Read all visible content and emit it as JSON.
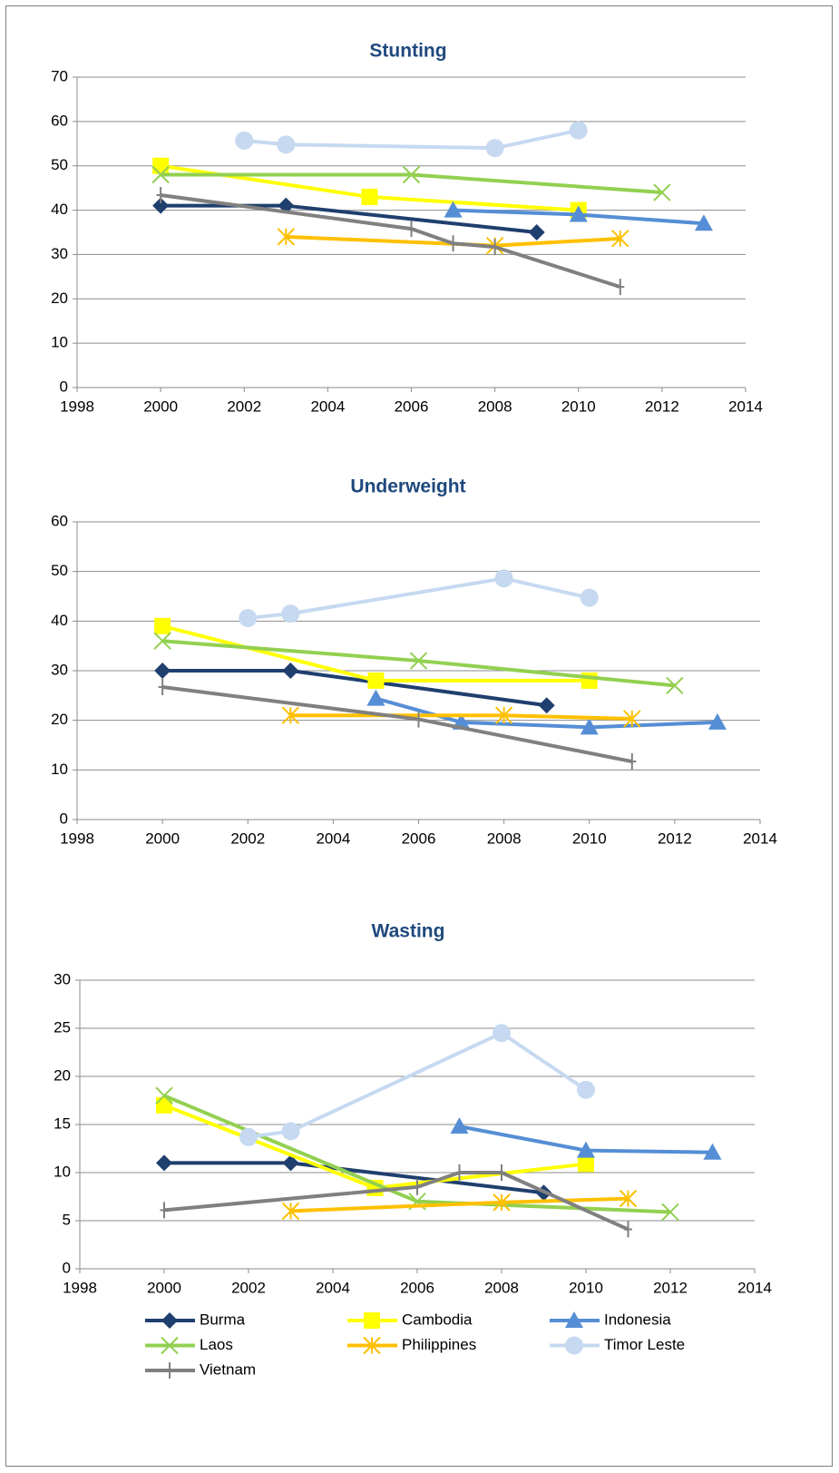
{
  "chart_data": [
    {
      "type": "line",
      "title": "Stunting",
      "xlim": [
        1998,
        2014
      ],
      "xticks": [
        1998,
        2000,
        2002,
        2004,
        2006,
        2008,
        2010,
        2012,
        2014
      ],
      "ylim": [
        0,
        70
      ],
      "yticks": [
        0,
        10,
        20,
        30,
        40,
        50,
        60,
        70
      ],
      "grid": true,
      "series": [
        {
          "color": "#1f3f6e",
          "marker": "diamond",
          "x": [
            2000,
            2003,
            2009
          ],
          "values": [
            41,
            41,
            35
          ]
        },
        {
          "color": "#ffff00",
          "marker": "square",
          "x": [
            2000,
            2005,
            2010
          ],
          "values": [
            50,
            43,
            40
          ]
        },
        {
          "color": "#558ed5",
          "marker": "triangle",
          "x": [
            2007,
            2010,
            2013
          ],
          "values": [
            40,
            39,
            37
          ]
        },
        {
          "color": "#92d050",
          "marker": "x",
          "x": [
            2000,
            2006,
            2012
          ],
          "values": [
            48,
            48,
            44
          ]
        },
        {
          "color": "#ffc000",
          "marker": "star",
          "x": [
            2003,
            2008,
            2011
          ],
          "values": [
            34,
            32,
            33.6
          ]
        },
        {
          "color": "#c6d9f1",
          "marker": "circle",
          "x": [
            2002,
            2003,
            2008,
            2010
          ],
          "values": [
            55.7,
            54.8,
            54,
            58
          ]
        },
        {
          "color": "#808080",
          "marker": "plus",
          "x": [
            2000,
            2006,
            2007,
            2008,
            2011
          ],
          "values": [
            43.4,
            35.8,
            32.5,
            31.7,
            22.7
          ]
        }
      ]
    },
    {
      "type": "line",
      "title": "Underweight",
      "xlim": [
        1998,
        2014
      ],
      "xticks": [
        1998,
        2000,
        2002,
        2004,
        2006,
        2008,
        2010,
        2012,
        2014
      ],
      "ylim": [
        0,
        60
      ],
      "yticks": [
        0,
        10,
        20,
        30,
        40,
        50,
        60
      ],
      "grid": true,
      "series": [
        {
          "color": "#1f3f6e",
          "marker": "diamond",
          "x": [
            2000,
            2003,
            2009
          ],
          "values": [
            30,
            30,
            23
          ]
        },
        {
          "color": "#ffff00",
          "marker": "square",
          "x": [
            2000,
            2005,
            2010
          ],
          "values": [
            39,
            28,
            28
          ]
        },
        {
          "color": "#558ed5",
          "marker": "triangle",
          "x": [
            2005,
            2007,
            2010,
            2013
          ],
          "values": [
            24.4,
            19.6,
            18.6,
            19.6
          ]
        },
        {
          "color": "#92d050",
          "marker": "x",
          "x": [
            2000,
            2006,
            2012
          ],
          "values": [
            36,
            32,
            27
          ]
        },
        {
          "color": "#ffc000",
          "marker": "star",
          "x": [
            2003,
            2008,
            2011
          ],
          "values": [
            21,
            21,
            20.3
          ]
        },
        {
          "color": "#c6d9f1",
          "marker": "circle",
          "x": [
            2002,
            2003,
            2008,
            2010
          ],
          "values": [
            40.6,
            41.5,
            48.6,
            44.7
          ]
        },
        {
          "color": "#808080",
          "marker": "plus",
          "x": [
            2000,
            2006,
            2011
          ],
          "values": [
            26.7,
            20.2,
            11.7
          ]
        }
      ]
    },
    {
      "type": "line",
      "title": "Wasting",
      "xlim": [
        1998,
        2014
      ],
      "xticks": [
        1998,
        2000,
        2002,
        2004,
        2006,
        2008,
        2010,
        2012,
        2014
      ],
      "ylim": [
        0,
        30
      ],
      "yticks": [
        0,
        5,
        10,
        15,
        20,
        25,
        30
      ],
      "grid": true,
      "legend": "bottom",
      "series": [
        {
          "name": "Burma",
          "color": "#1f3f6e",
          "marker": "diamond",
          "x": [
            2000,
            2003,
            2009
          ],
          "values": [
            11,
            11,
            7.9
          ]
        },
        {
          "name": "Cambodia",
          "color": "#ffff00",
          "marker": "square",
          "x": [
            2000,
            2005,
            2010
          ],
          "values": [
            17,
            8.4,
            10.9
          ]
        },
        {
          "name": "Indonesia",
          "color": "#558ed5",
          "marker": "triangle",
          "x": [
            2007,
            2010,
            2013
          ],
          "values": [
            14.8,
            12.3,
            12.1
          ]
        },
        {
          "name": "Laos",
          "color": "#92d050",
          "marker": "x",
          "x": [
            2000,
            2006,
            2012
          ],
          "values": [
            18,
            7,
            5.9
          ]
        },
        {
          "name": "Philippines",
          "color": "#ffc000",
          "marker": "star",
          "x": [
            2003,
            2008,
            2011
          ],
          "values": [
            6,
            6.9,
            7.3
          ]
        },
        {
          "name": "Timor Leste",
          "color": "#c6d9f1",
          "marker": "circle",
          "x": [
            2002,
            2003,
            2008,
            2010
          ],
          "values": [
            13.7,
            14.3,
            24.5,
            18.6
          ]
        },
        {
          "name": "Vietnam",
          "color": "#808080",
          "marker": "plus",
          "x": [
            2000,
            2006,
            2007,
            2008,
            2011
          ],
          "values": [
            6.1,
            8.5,
            10,
            10,
            4.1
          ]
        }
      ]
    }
  ]
}
